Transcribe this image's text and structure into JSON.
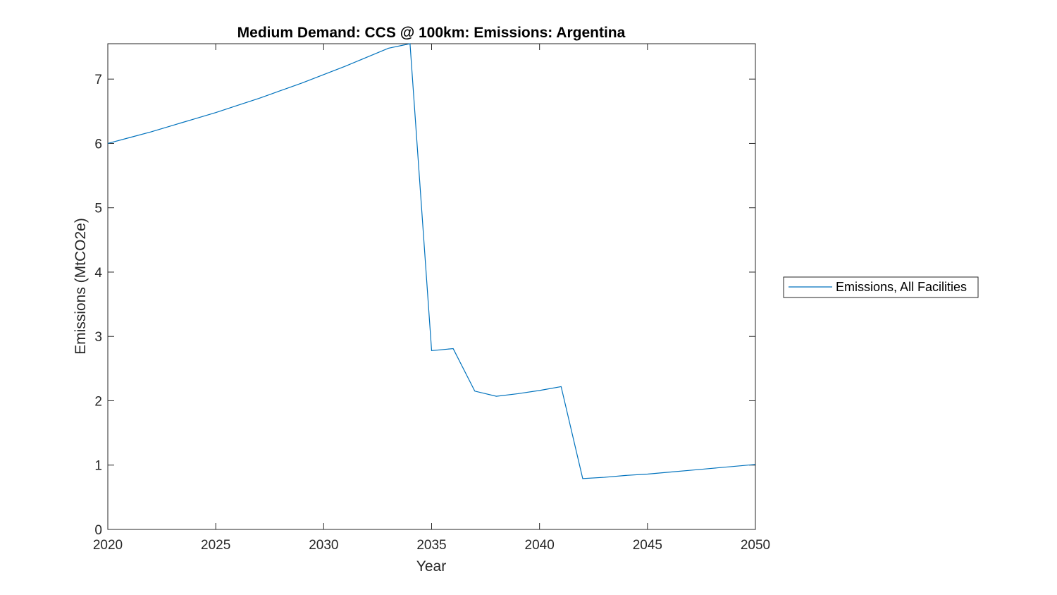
{
  "chart_data": {
    "type": "line",
    "title": "Medium Demand: CCS @ 100km: Emissions: Argentina",
    "xlabel": "Year",
    "ylabel": "Emissions (MtCO2e)",
    "xlim": [
      2020,
      2050
    ],
    "ylim": [
      0,
      7.55
    ],
    "xticks": [
      2020,
      2025,
      2030,
      2035,
      2040,
      2045,
      2050
    ],
    "yticks": [
      0,
      1,
      2,
      3,
      4,
      5,
      6,
      7
    ],
    "grid": false,
    "legend_position": "outside-right",
    "series": [
      {
        "name": "Emissions, All Facilities",
        "color": "#0072BD",
        "x": [
          2020,
          2021,
          2022,
          2023,
          2024,
          2025,
          2026,
          2027,
          2028,
          2029,
          2030,
          2031,
          2032,
          2033,
          2034,
          2035,
          2036,
          2037,
          2038,
          2039,
          2040,
          2041,
          2042,
          2043,
          2044,
          2045,
          2046,
          2047,
          2048,
          2049,
          2050
        ],
        "y": [
          6.0,
          6.09,
          6.18,
          6.28,
          6.38,
          6.48,
          6.59,
          6.7,
          6.82,
          6.94,
          7.07,
          7.2,
          7.34,
          7.48,
          7.55,
          2.78,
          2.81,
          2.15,
          2.07,
          2.11,
          2.16,
          2.22,
          0.79,
          0.81,
          0.84,
          0.86,
          0.89,
          0.92,
          0.95,
          0.98,
          1.01
        ]
      }
    ]
  }
}
